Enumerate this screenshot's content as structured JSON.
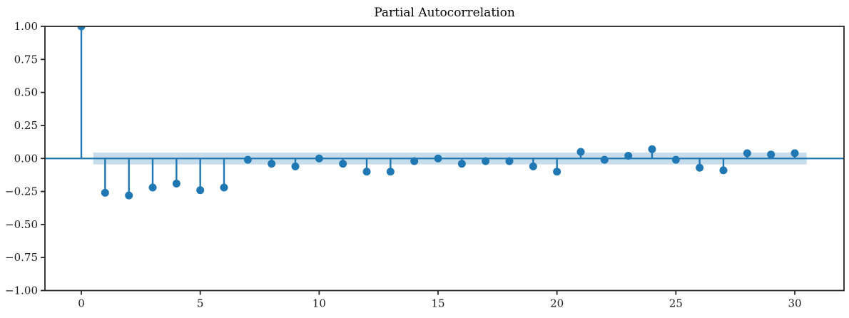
{
  "figure": {
    "background": "#ffffff"
  },
  "chart_data": {
    "type": "stem",
    "title": "Partial Autocorrelation",
    "xlabel": "",
    "ylabel": "",
    "grid": false,
    "legend": null,
    "xlim": [
      -1.53,
      32.07
    ],
    "ylim": [
      -1.0,
      1.0
    ],
    "x_ticks": [
      {
        "value": 0,
        "label": "0"
      },
      {
        "value": 5,
        "label": "5"
      },
      {
        "value": 10,
        "label": "10"
      },
      {
        "value": 15,
        "label": "15"
      },
      {
        "value": 20,
        "label": "20"
      },
      {
        "value": 25,
        "label": "25"
      },
      {
        "value": 30,
        "label": "30"
      }
    ],
    "y_ticks": [
      {
        "value": 1.0,
        "label": "1.00"
      },
      {
        "value": 0.75,
        "label": "0.75"
      },
      {
        "value": 0.5,
        "label": "0.50"
      },
      {
        "value": 0.25,
        "label": "0.25"
      },
      {
        "value": 0.0,
        "label": "0.00"
      },
      {
        "value": -0.25,
        "label": "−0.25"
      },
      {
        "value": -0.5,
        "label": "−0.50"
      },
      {
        "value": -0.75,
        "label": "−0.75"
      },
      {
        "value": -1.0,
        "label": "−1.00"
      }
    ],
    "lags": [
      0,
      1,
      2,
      3,
      4,
      5,
      6,
      7,
      8,
      9,
      10,
      11,
      12,
      13,
      14,
      15,
      16,
      17,
      18,
      19,
      20,
      21,
      22,
      23,
      24,
      25,
      26,
      27,
      28,
      29,
      30
    ],
    "values": [
      1.0,
      -0.26,
      -0.28,
      -0.22,
      -0.19,
      -0.24,
      -0.22,
      -0.01,
      -0.04,
      -0.06,
      0.0,
      -0.04,
      -0.1,
      -0.1,
      -0.02,
      0.0,
      -0.04,
      -0.02,
      -0.02,
      -0.06,
      -0.1,
      0.05,
      -0.01,
      0.02,
      0.07,
      -0.01,
      -0.07,
      -0.09,
      0.04,
      0.03,
      0.04
    ],
    "confidence_band": {
      "half_width": 0.045,
      "from_lag": 0.5,
      "to_lag": 30.5
    },
    "colors": {
      "stem": "#1f77b4",
      "marker": "#1f77b4",
      "zero_line": "#1f77b4",
      "band": "#c7ddec",
      "axis": "#262626",
      "tick_label": "#1a1a1a",
      "title": "#000000"
    }
  }
}
